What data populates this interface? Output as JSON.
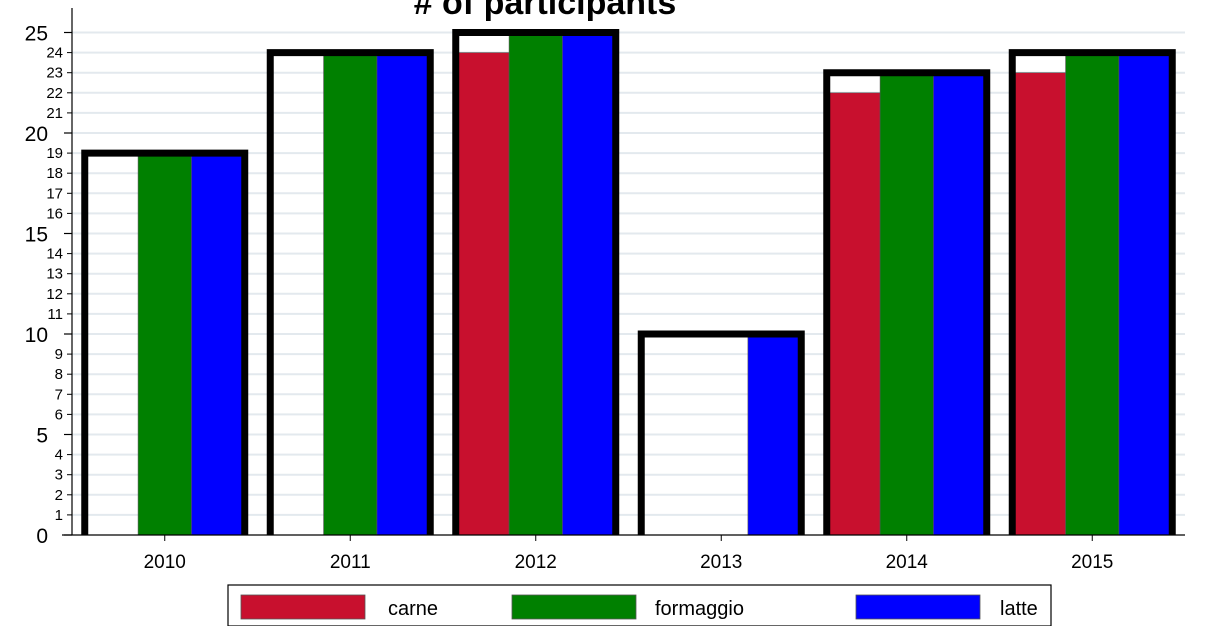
{
  "chart_data": {
    "type": "bar",
    "title": "# of participants",
    "xlabel": "",
    "ylabel": "",
    "ylim": [
      0,
      26
    ],
    "grid": true,
    "legend_position": "bottom",
    "categories": [
      "2010",
      "2011",
      "2012",
      "2013",
      "2014",
      "2015"
    ],
    "series": [
      {
        "name": "carne",
        "color": "#c8102e",
        "values": [
          0,
          0,
          24,
          0,
          22,
          23
        ]
      },
      {
        "name": "formaggio",
        "color": "#008000",
        "values": [
          19,
          24,
          25,
          0,
          23,
          24
        ]
      },
      {
        "name": "latte",
        "color": "#0000ff",
        "values": [
          19,
          24,
          25,
          10,
          23,
          24
        ]
      }
    ],
    "total": {
      "values": [
        19,
        24,
        25,
        10,
        23,
        24
      ]
    },
    "yticks_major": [
      0,
      5,
      10,
      15,
      20,
      25
    ],
    "yticks_minor": [
      1,
      2,
      3,
      4,
      6,
      7,
      8,
      9,
      11,
      12,
      13,
      14,
      16,
      17,
      18,
      19,
      21,
      22,
      23,
      24
    ]
  }
}
